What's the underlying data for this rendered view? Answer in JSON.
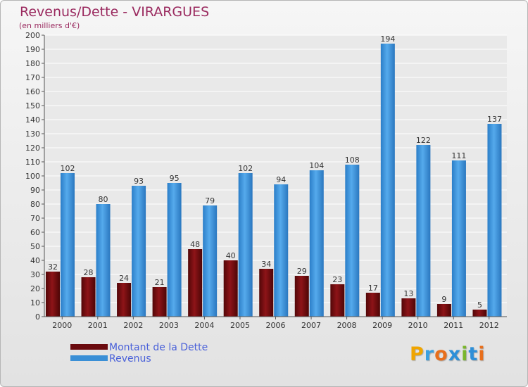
{
  "header": {
    "title": "Revenus/Dette - VIRARGUES",
    "subtitle": "(en milliers d'€)"
  },
  "legend": {
    "items": [
      {
        "label": "Montant de la Dette",
        "color": "#7a0c12"
      },
      {
        "label": "Revenus",
        "color": "#3a8fd6"
      }
    ]
  },
  "logo": {
    "letters": [
      "P",
      "r",
      "o",
      "x",
      "i",
      "t",
      "i"
    ],
    "colors": [
      "#f0a500",
      "#3aa0e0",
      "#e86f1c",
      "#2d8fd8",
      "#7ab62c",
      "#2d8fd8",
      "#e86f1c"
    ]
  },
  "chart_data": {
    "type": "bar",
    "title": "Revenus/Dette - VIRARGUES",
    "subtitle": "(en milliers d'€)",
    "categories": [
      "2000",
      "2001",
      "2002",
      "2003",
      "2004",
      "2005",
      "2006",
      "2007",
      "2008",
      "2009",
      "2010",
      "2011",
      "2012"
    ],
    "series": [
      {
        "name": "Montant de la Dette",
        "color": "#7a0c12",
        "values": [
          32,
          28,
          24,
          21,
          48,
          40,
          34,
          29,
          23,
          17,
          13,
          9,
          5
        ]
      },
      {
        "name": "Revenus",
        "color": "#3a8fd6",
        "values": [
          102,
          80,
          93,
          95,
          79,
          102,
          94,
          104,
          108,
          194,
          122,
          111,
          137
        ]
      }
    ],
    "ylim": [
      0,
      200
    ],
    "yticks": [
      0,
      10,
      20,
      30,
      40,
      50,
      60,
      70,
      80,
      90,
      100,
      110,
      120,
      130,
      140,
      150,
      160,
      170,
      180,
      190,
      200
    ],
    "grid": true,
    "legend_position": "bottom-left"
  }
}
